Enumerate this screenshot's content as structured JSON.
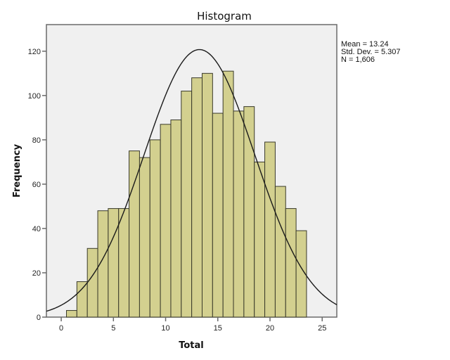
{
  "chart_data": {
    "type": "bar",
    "subtype": "histogram",
    "title": "Histogram",
    "xlabel": "Total",
    "ylabel": "Frequency",
    "bin_width": 1,
    "categories": [
      1,
      2,
      3,
      4,
      5,
      6,
      7,
      8,
      9,
      10,
      11,
      12,
      13,
      14,
      15,
      16,
      17,
      18,
      19,
      20,
      21,
      22,
      23
    ],
    "values": [
      3,
      16,
      31,
      48,
      49,
      49,
      75,
      72,
      80,
      87,
      89,
      102,
      108,
      110,
      92,
      111,
      93,
      95,
      70,
      79,
      59,
      49,
      39
    ],
    "xlim": [
      -1.42,
      26.4
    ],
    "ylim": [
      0,
      132
    ],
    "xticks": [
      0,
      5,
      10,
      15,
      20,
      25
    ],
    "yticks": [
      0,
      20,
      40,
      60,
      80,
      100,
      120
    ],
    "grid": false,
    "normal_curve": {
      "mean": 13.24,
      "std": 5.307,
      "n": 1606
    },
    "legend_position": "right",
    "annotations": [
      "Mean = 13.24",
      "Std. Dev. = 5.307",
      "N = 1,606"
    ]
  },
  "stats": {
    "mean": "Mean = 13.24",
    "std": "Std. Dev. = 5.307",
    "n": "N = 1,606"
  },
  "colors": {
    "bar_fill": "#d3d08f",
    "bar_stroke": "#3a3a2a",
    "plot_bg": "#f0f0f0",
    "axis": "#6a6a6a",
    "curve": "#1a1a1a"
  }
}
